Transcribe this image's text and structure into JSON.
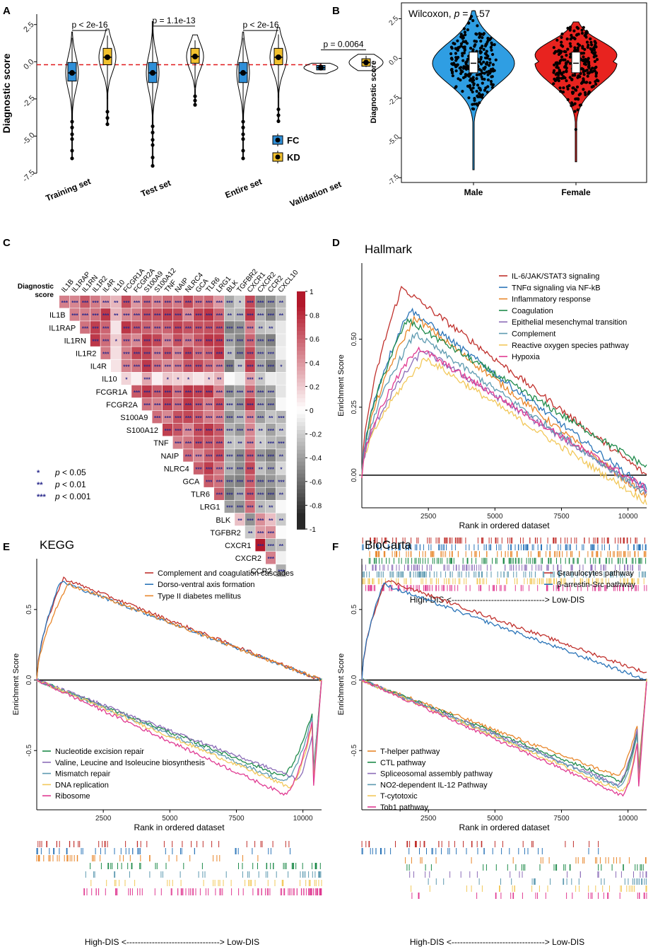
{
  "panel_letters": [
    "A",
    "B",
    "C",
    "D",
    "E",
    "F"
  ],
  "colors": {
    "fc": "#2f8fd8",
    "kd": "#f2c12e",
    "male": "#2f9ee3",
    "female": "#e8231f",
    "red_dash": "#e0191c",
    "sig_star": "#2a2a8c"
  },
  "chart_data": [
    {
      "panel": "A",
      "type": "violin-box",
      "ylabel": "Diagnostic score",
      "ylim": [
        -7.5,
        3.2
      ],
      "yticks": [
        "2.5",
        "0.0",
        "-2.5",
        "-5.0",
        "-7.5"
      ],
      "ytick_values": [
        2.5,
        0,
        -2.5,
        -5,
        -7.5
      ],
      "reference_line": -0.2,
      "categories": [
        "Training set",
        "Test set",
        "Entire set",
        "Validation set"
      ],
      "pvalues": [
        "p < 2e-16",
        "p = 1.1e-13",
        "p < 2e-16",
        "p = 0.0064"
      ],
      "legend": [
        {
          "name": "FC",
          "color": "#2f8fd8"
        },
        {
          "name": "KD",
          "color": "#f2c12e"
        }
      ],
      "groups": [
        {
          "fc": {
            "min": -6.5,
            "q1": -1.3,
            "med": -0.75,
            "q3": -0.05,
            "max": 2.0
          },
          "kd": {
            "min": -4.2,
            "q1": -0.2,
            "med": 0.3,
            "q3": 0.9,
            "max": 2.2
          }
        },
        {
          "fc": {
            "min": -7.0,
            "q1": -1.4,
            "med": -0.75,
            "q3": -0.05,
            "max": 2.7
          },
          "kd": {
            "min": -2.9,
            "q1": -0.1,
            "med": 0.35,
            "q3": 0.9,
            "max": 1.8
          }
        },
        {
          "fc": {
            "min": -6.5,
            "q1": -1.4,
            "med": -0.75,
            "q3": -0.05,
            "max": 2.0
          },
          "kd": {
            "min": -4.0,
            "q1": -0.2,
            "med": 0.3,
            "q3": 0.9,
            "max": 2.3
          }
        },
        {
          "fc": {
            "min": -0.8,
            "q1": -0.55,
            "med": -0.4,
            "q3": -0.25,
            "max": -0.1
          },
          "kd": {
            "min": -0.6,
            "q1": -0.3,
            "med": -0.05,
            "q3": 0.2,
            "max": 0.5
          }
        }
      ]
    },
    {
      "panel": "B",
      "type": "violin-scatter",
      "title": "Wilcoxon, p = 0.57",
      "title_prefix": "Wilcoxon, ",
      "title_p": "p",
      "title_value": " = 0.57",
      "ylabel": "Diagnostic score",
      "ylim": [
        -7.8,
        3.5
      ],
      "yticks": [
        "2.5",
        "0.0",
        "-2.5",
        "-5.0",
        "-7.5"
      ],
      "ytick_values": [
        2.5,
        0,
        -2.5,
        -5,
        -7.5
      ],
      "categories": [
        "Male",
        "Female"
      ],
      "stats": [
        {
          "min": -7.0,
          "max": 3.0,
          "center": -0.3
        },
        {
          "min": -6.5,
          "max": 2.3,
          "center": -0.3
        }
      ]
    },
    {
      "panel": "C",
      "type": "heatmap",
      "labels": [
        "Diagnostic score",
        "IL1B",
        "IL1RAP",
        "IL1RN",
        "IL1R2",
        "IL4R",
        "IL10",
        "FCGR1A",
        "FCGR2A",
        "S100A9",
        "S100A12",
        "TNF",
        "NAIP",
        "NLRC4",
        "GCA",
        "TLR6",
        "LRG1",
        "BLK",
        "TGFBR2",
        "CXCR1",
        "CXCR2",
        "CCR2",
        "CXCL10"
      ],
      "row_label_lines": [
        [
          "Diagnostic",
          "score"
        ]
      ],
      "colorbar_ticks": [
        "1",
        "0.8",
        "0.6",
        "0.4",
        "0.2",
        "0",
        "-0.2",
        "-0.4",
        "-0.6",
        "-0.8",
        "-1"
      ],
      "colorbar_values": [
        1,
        0.8,
        0.6,
        0.4,
        0.2,
        0,
        -0.2,
        -0.4,
        -0.6,
        -0.8,
        -1
      ],
      "legend": [
        {
          "stars": "*",
          "text": "p < 0.05"
        },
        {
          "stars": "**",
          "text": "p < 0.01"
        },
        {
          "stars": "***",
          "text": "p < 0.001"
        }
      ],
      "legend_p": "p",
      "legend_rest": [
        " < 0.05",
        " < 0.01",
        " < 0.001"
      ],
      "neg_genes": [
        "BLK",
        "TGFBR2",
        "CXCR2",
        "CCR2"
      ]
    },
    {
      "panel": "D",
      "type": "line",
      "title": "Hallmark",
      "xlabel": "Rank in ordered dataset",
      "ylabel": "Enrichment Score",
      "xlim": [
        0,
        10700
      ],
      "ylim": [
        -0.12,
        0.78
      ],
      "xticks": [
        "2500",
        "5000",
        "7500",
        "10000"
      ],
      "xtick_values": [
        2500,
        5000,
        7500,
        10000
      ],
      "yticks": [
        "0.00",
        "0.25",
        "0.50"
      ],
      "ytick_values": [
        0,
        0.25,
        0.5
      ],
      "rank_label": "High-DIS <---------------------------------> Low-DIS",
      "series": [
        {
          "name": "IL-6/JAK/STAT3 signaling",
          "color": "#c0302c",
          "peak_x": 1500,
          "peak_y": 0.69,
          "end_y": 0.0
        },
        {
          "name": "TNFα signaling via NF-kB",
          "color": "#2a74b8",
          "peak_x": 1800,
          "peak_y": 0.61,
          "end_y": -0.05
        },
        {
          "name": "Inflammatory response",
          "color": "#e8862a",
          "peak_x": 2000,
          "peak_y": 0.58,
          "end_y": -0.08
        },
        {
          "name": "Coagulation",
          "color": "#1e8a4a",
          "peak_x": 1700,
          "peak_y": 0.57,
          "end_y": 0.03
        },
        {
          "name": "Epithelial mesenchymal transition",
          "color": "#8c6db8",
          "peak_x": 2300,
          "peak_y": 0.46,
          "end_y": -0.06
        },
        {
          "name": "Complement",
          "color": "#5d9ab0",
          "peak_x": 2000,
          "peak_y": 0.52,
          "end_y": -0.07
        },
        {
          "name": "Reactive oxygen species pathway",
          "color": "#f2c85a",
          "peak_x": 2400,
          "peak_y": 0.43,
          "end_y": -0.1
        },
        {
          "name": "Hypoxia",
          "color": "#e03a92",
          "peak_x": 2100,
          "peak_y": 0.47,
          "end_y": -0.05
        }
      ]
    },
    {
      "panel": "E",
      "type": "line",
      "title": "KEGG",
      "xlabel": "Rank in ordered dataset",
      "ylabel": "Enrichment Score",
      "xlim": [
        0,
        10700
      ],
      "ylim": [
        -0.92,
        0.86
      ],
      "xticks": [
        "2500",
        "5000",
        "7500",
        "10000"
      ],
      "xtick_values": [
        2500,
        5000,
        7500,
        10000
      ],
      "yticks": [
        "0.5",
        "0.0",
        "-0.5"
      ],
      "ytick_values": [
        0.5,
        0,
        -0.5
      ],
      "rank_label": "High-DIS <---------------------------------> Low-DIS",
      "series": [
        {
          "name": "Complement and coagulation cascades",
          "color": "#c0302c",
          "peak_x": 1000,
          "peak_y": 0.72,
          "end_y": 0.0
        },
        {
          "name": "Dorso-ventral axis formation",
          "color": "#2a74b8",
          "peak_x": 900,
          "peak_y": 0.7,
          "end_y": 0.0
        },
        {
          "name": "Type II diabetes mellitus",
          "color": "#e8862a",
          "peak_x": 1200,
          "peak_y": 0.68,
          "end_y": 0.0
        },
        {
          "name": "Nucleotide excision repair",
          "color": "#1e8a4a",
          "peak_x": 9200,
          "peak_y": -0.68,
          "end_y": 0.0
        },
        {
          "name": "Valine, Leucine and Isoleucine biosynthesis",
          "color": "#8c6db8",
          "peak_x": 9800,
          "peak_y": -0.7,
          "end_y": 0.0
        },
        {
          "name": "Mismatch repair",
          "color": "#5d9ab0",
          "peak_x": 9300,
          "peak_y": -0.72,
          "end_y": 0.0
        },
        {
          "name": "DNA replication",
          "color": "#f2c85a",
          "peak_x": 9500,
          "peak_y": -0.76,
          "end_y": 0.0
        },
        {
          "name": "Ribosome",
          "color": "#e03a92",
          "peak_x": 9300,
          "peak_y": -0.81,
          "end_y": 0.0
        }
      ]
    },
    {
      "panel": "F",
      "type": "line",
      "title": "BioCarta",
      "xlabel": "Rank in ordered dataset",
      "ylabel": "Enrichment Score",
      "xlim": [
        0,
        10700
      ],
      "ylim": [
        -0.92,
        0.86
      ],
      "xticks": [
        "2500",
        "5000",
        "7500",
        "10000"
      ],
      "xtick_values": [
        2500,
        5000,
        7500,
        10000
      ],
      "yticks": [
        "0.5",
        "0.0",
        "-0.5"
      ],
      "ytick_values": [
        0.5,
        0,
        -0.5
      ],
      "rank_label": "High-DIS <---------------------------------> Low-DIS",
      "series": [
        {
          "name": "Granulocytes pathway",
          "color": "#c0302c",
          "peak_x": 900,
          "peak_y": 0.71,
          "end_y": 0.05
        },
        {
          "name": "β-arrestin-Src pathway",
          "color": "#2a74b8",
          "peak_x": 800,
          "peak_y": 0.68,
          "end_y": 0.0
        },
        {
          "name": "T-helper pathway",
          "color": "#e8862a",
          "peak_x": 9600,
          "peak_y": -0.68,
          "end_y": 0.0
        },
        {
          "name": "CTL pathway",
          "color": "#1e8a4a",
          "peak_x": 9700,
          "peak_y": -0.72,
          "end_y": 0.0
        },
        {
          "name": "Spliceosomal assembly pathway",
          "color": "#8c6db8",
          "peak_x": 9600,
          "peak_y": -0.74,
          "end_y": 0.0
        },
        {
          "name": "NO2-dependent IL-12 Pathway",
          "color": "#5d9ab0",
          "peak_x": 9700,
          "peak_y": -0.76,
          "end_y": 0.0
        },
        {
          "name": "T-cytotoxic",
          "color": "#f2c85a",
          "peak_x": 9800,
          "peak_y": -0.79,
          "end_y": 0.0
        },
        {
          "name": "Tob1 pathway",
          "color": "#e03a92",
          "peak_x": 9800,
          "peak_y": -0.82,
          "end_y": 0.0
        }
      ]
    }
  ]
}
